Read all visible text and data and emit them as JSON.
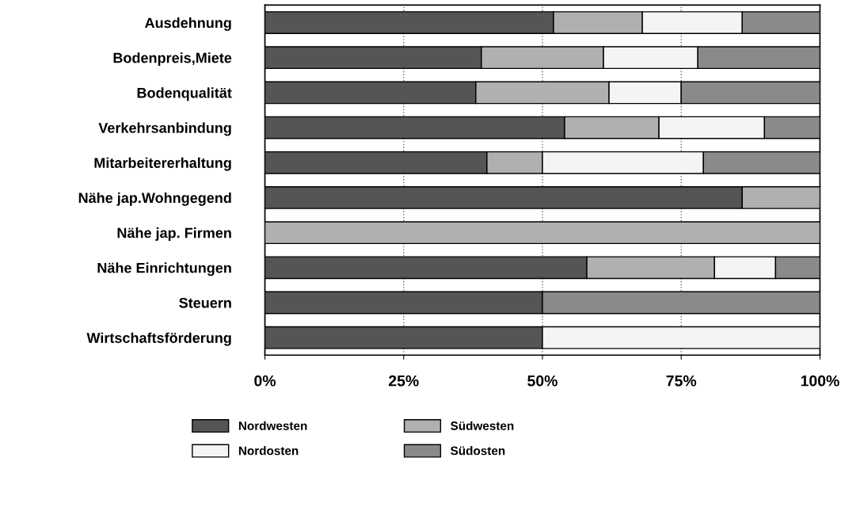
{
  "chart_data": {
    "type": "bar",
    "orientation": "horizontal",
    "stacked": true,
    "categories": [
      "Ausdehnung",
      "Bodenpreis,Miete",
      "Bodenqualität",
      "Verkehrsanbindung",
      "Mitarbeitererhaltung",
      "Nähe jap.Wohngegend",
      "Nähe jap. Firmen",
      "Nähe Einrichtungen",
      "Steuern",
      "Wirtschaftsförderung"
    ],
    "series": [
      {
        "name": "Nordwesten",
        "color": "#555555",
        "values": [
          52,
          39,
          38,
          54,
          40,
          86,
          null,
          58,
          50,
          50
        ]
      },
      {
        "name": "Südwesten",
        "color": "#b0b0b0",
        "values": [
          16,
          22,
          24,
          17,
          10,
          14,
          100,
          23,
          null,
          null
        ]
      },
      {
        "name": "Nordosten",
        "color": "#f4f4f4",
        "values": [
          18,
          17,
          13,
          19,
          29,
          null,
          null,
          11,
          null,
          50
        ]
      },
      {
        "name": "Südosten",
        "color": "#8a8a8a",
        "values": [
          14,
          22,
          25,
          10,
          21,
          null,
          null,
          8,
          50,
          null
        ]
      }
    ],
    "xlim": [
      0,
      100
    ],
    "xticks": [
      {
        "value": 0,
        "label": "0%"
      },
      {
        "value": 25,
        "label": "25%"
      },
      {
        "value": 50,
        "label": "50%"
      },
      {
        "value": 75,
        "label": "75%"
      },
      {
        "value": 100,
        "label": "100%"
      }
    ],
    "grid": "x",
    "legend": "bottom"
  }
}
